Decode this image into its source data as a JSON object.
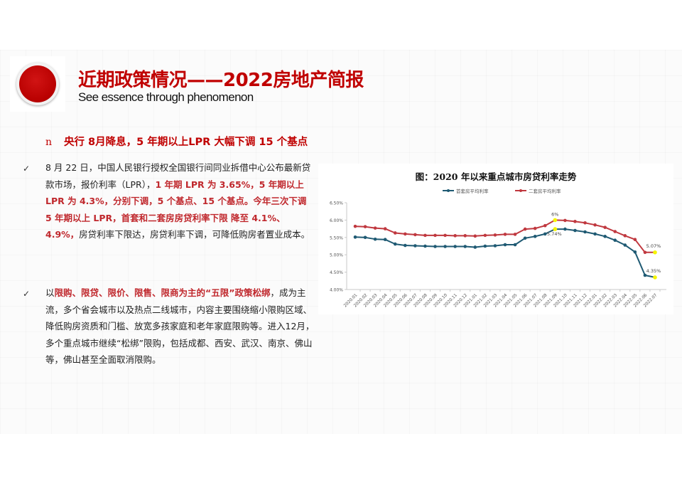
{
  "header": {
    "title": "近期政策情况——2022房地产简报",
    "subtitle": "See essence through phenomenon",
    "logo_icon": "red-circle-icon"
  },
  "headline": {
    "bullet": "n",
    "text": "央行 8月降息，5 年期以上LPR 大幅下调 15 个基点"
  },
  "paragraphs": [
    {
      "bullet": "✓",
      "segments": [
        {
          "text": "8 月 22 日，中国人民银行授权全国银行间同业拆借中心公布最新贷款市场，报价利率（LPR），",
          "style": "normal"
        },
        {
          "text": "1 年期 LPR 为 3.65%，5 年期以上 LPR 为 4.3%，分别下调，5 个基点、15 个基点。今年三次下调 5  年期以上 LPR，首套和二套房房贷利率下限  降至  4.1%、4.9%，",
          "style": "red"
        },
        {
          "text": "房贷利率下限达，房贷利率下调，可降低购房者置业成本。",
          "style": "normal"
        }
      ]
    },
    {
      "bullet": "✓",
      "segments": [
        {
          "text": "以",
          "style": "normal"
        },
        {
          "text": "限购、限贷、限价、限售、限商为主的“五限”政策松绑",
          "style": "red"
        },
        {
          "text": "，成为主流，多个省会城市以及热点二线城市，内容主要围绕缩小限购区域、降低购房资质和门槛、放宽多孩家庭和老年家庭限购等。进入12月，多个重点城市继续“松绑”限购，包括成都、西安、武汉、南京、佛山等，佛山甚至全面取消限购。",
          "style": "normal"
        }
      ]
    }
  ],
  "chart_data": {
    "type": "line",
    "title": "图：2020 年以来重点城市房贷利率走势",
    "xlabel": "",
    "ylabel": "",
    "ylim": [
      4.0,
      6.5
    ],
    "yticks": [
      "6.50%",
      "6.00%",
      "5.50%",
      "5.00%",
      "4.50%",
      "4.00%"
    ],
    "ytick_values": [
      6.5,
      6.0,
      5.5,
      5.0,
      4.5,
      4.0
    ],
    "grid": false,
    "legend_position": "top",
    "categories": [
      "2020.01",
      "2020.02",
      "2020.03",
      "2020.04",
      "2020.05",
      "2020.06",
      "2020.07",
      "2020.08",
      "2020.09",
      "2020.10",
      "2020.11",
      "2020.12",
      "2021.01",
      "2021.02",
      "2021.03",
      "2021.04",
      "2021.05",
      "2021.06",
      "2021.07",
      "2021.08",
      "2021.09",
      "2021.10",
      "2021.11",
      "2021.12",
      "2022.01",
      "2022.02",
      "2022.03",
      "2022.04",
      "2022.05",
      "2022.06",
      "2022.07"
    ],
    "series": [
      {
        "name": "首套房平均利率",
        "color": "#1f5a73",
        "values": [
          5.51,
          5.5,
          5.45,
          5.44,
          5.31,
          5.27,
          5.26,
          5.25,
          5.24,
          5.24,
          5.24,
          5.24,
          5.22,
          5.25,
          5.26,
          5.29,
          5.29,
          5.48,
          5.53,
          5.6,
          5.74,
          5.74,
          5.7,
          5.66,
          5.6,
          5.53,
          5.42,
          5.28,
          5.08,
          4.41,
          4.35
        ]
      },
      {
        "name": "二套房平均利率",
        "color": "#c0383f",
        "values": [
          5.82,
          5.81,
          5.77,
          5.75,
          5.63,
          5.6,
          5.58,
          5.56,
          5.56,
          5.56,
          5.55,
          5.55,
          5.54,
          5.56,
          5.57,
          5.59,
          5.59,
          5.74,
          5.76,
          5.84,
          6.0,
          5.99,
          5.96,
          5.92,
          5.86,
          5.79,
          5.67,
          5.55,
          5.44,
          5.07,
          5.07
        ]
      }
    ],
    "annotations": [
      {
        "text": "6%",
        "series": "二套房平均利率",
        "x": "2021.09",
        "value": 6.0
      },
      {
        "text": "5.74%",
        "series": "首套房平均利率",
        "x": "2021.09",
        "value": 5.74
      },
      {
        "text": "5.07%",
        "series": "二套房平均利率",
        "x": "2022.07",
        "value": 5.07
      },
      {
        "text": "4.35%",
        "series": "首套房平均利率",
        "x": "2022.07",
        "value": 4.35
      }
    ],
    "highlight_color": "#f5f500"
  }
}
